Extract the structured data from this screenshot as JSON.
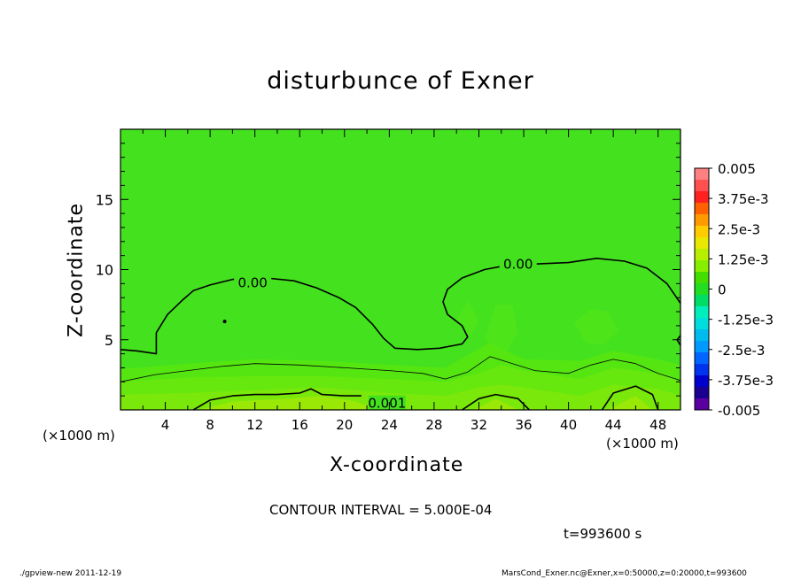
{
  "chart_data": {
    "type": "heatmap",
    "title": "disturbunce of Exner",
    "xlabel": "X-coordinate",
    "ylabel": "Z-coordinate",
    "x_unit_label": "(×1000 m)",
    "xlim": [
      0,
      50
    ],
    "ylim": [
      0,
      20
    ],
    "x_ticks": [
      4,
      8,
      12,
      16,
      20,
      24,
      28,
      32,
      36,
      40,
      44,
      48
    ],
    "y_ticks": [
      5,
      10,
      15
    ],
    "colorbar": {
      "labels": [
        "0.005",
        "3.75e-3",
        "2.5e-3",
        "1.25e-3",
        "0",
        "-1.25e-3",
        "-2.5e-3",
        "-3.75e-3",
        "-0.005"
      ],
      "colors": [
        "#ff8080",
        "#ff5050",
        "#ff2020",
        "#ff6000",
        "#ff9a00",
        "#ffcc00",
        "#e8e800",
        "#b8ee00",
        "#88ee00",
        "#44dd00",
        "#22dd22",
        "#00dd66",
        "#00eebb",
        "#00dddd",
        "#00bbee",
        "#0099ff",
        "#0066ff",
        "#0033ee",
        "#0000cc",
        "#1a0090",
        "#5a00a0"
      ],
      "range": [
        -0.005,
        0.005
      ]
    },
    "contour_labels": [
      {
        "text": "0.00",
        "x": 11.8,
        "z": 9.0
      },
      {
        "text": "0.00",
        "x": 35.5,
        "z": 10.3
      },
      {
        "text": "0.001",
        "x": 23.8,
        "z": 0.4
      }
    ],
    "contours": [
      {
        "level": "0.00",
        "points": [
          [
            0,
            4.3
          ],
          [
            1.5,
            4.2
          ],
          [
            3.2,
            4.0
          ],
          [
            3.2,
            5.5
          ],
          [
            4.2,
            6.8
          ],
          [
            5.5,
            7.8
          ],
          [
            6.5,
            8.5
          ],
          [
            8,
            8.9
          ],
          [
            10,
            9.3
          ],
          [
            13,
            9.4
          ],
          [
            15.5,
            9.2
          ],
          [
            17.5,
            8.7
          ],
          [
            19.5,
            8.0
          ],
          [
            21,
            7.3
          ],
          [
            22.5,
            6.1
          ],
          [
            23.5,
            5.1
          ],
          [
            24.5,
            4.4
          ],
          [
            26.5,
            4.3
          ],
          [
            28.5,
            4.4
          ],
          [
            30.5,
            4.7
          ],
          [
            31,
            5.2
          ],
          [
            30.5,
            6.0
          ],
          [
            29.2,
            6.8
          ],
          [
            28.8,
            7.7
          ],
          [
            29.2,
            8.6
          ],
          [
            30.5,
            9.4
          ],
          [
            32.5,
            10.0
          ],
          [
            34.5,
            10.3
          ],
          [
            37,
            10.4
          ],
          [
            40,
            10.5
          ],
          [
            42.5,
            10.8
          ],
          [
            45,
            10.6
          ],
          [
            47,
            10.1
          ],
          [
            48.8,
            9.0
          ],
          [
            50,
            7.6
          ]
        ]
      },
      {
        "level": "0.00",
        "points": [
          [
            50,
            5.3
          ],
          [
            49.7,
            5.0
          ],
          [
            50,
            4.6
          ]
        ]
      },
      {
        "level": "-",
        "points": [
          [
            0,
            2.0
          ],
          [
            3,
            2.5
          ],
          [
            6,
            2.8
          ],
          [
            9,
            3.1
          ],
          [
            12,
            3.3
          ],
          [
            16,
            3.2
          ],
          [
            20,
            3.0
          ],
          [
            24,
            2.8
          ],
          [
            27,
            2.6
          ],
          [
            29,
            2.2
          ],
          [
            31,
            2.7
          ],
          [
            33,
            3.8
          ],
          [
            35,
            3.3
          ],
          [
            37,
            2.8
          ],
          [
            40,
            2.6
          ],
          [
            42,
            3.2
          ],
          [
            44,
            3.6
          ],
          [
            46,
            3.3
          ],
          [
            48,
            2.6
          ],
          [
            50,
            2.1
          ]
        ]
      },
      {
        "level": "0.001",
        "points": [
          [
            6.5,
            0
          ],
          [
            8,
            0.7
          ],
          [
            10,
            1.0
          ],
          [
            12,
            1.1
          ],
          [
            14,
            1.1
          ],
          [
            16,
            1.2
          ],
          [
            17,
            1.5
          ],
          [
            18,
            1.1
          ],
          [
            20,
            1.0
          ],
          [
            21.5,
            1.0
          ]
        ]
      },
      {
        "level": "0.001",
        "points": [
          [
            30.5,
            0
          ],
          [
            32,
            0.8
          ],
          [
            33.5,
            1.1
          ],
          [
            35.5,
            0.8
          ],
          [
            36.5,
            0
          ]
        ]
      },
      {
        "level": "0.001",
        "points": [
          [
            43,
            0
          ],
          [
            44,
            1.2
          ],
          [
            46,
            1.7
          ],
          [
            47.5,
            1.1
          ],
          [
            48,
            0
          ]
        ]
      }
    ],
    "fill_bands": [
      {
        "color": "#55e612",
        "points": [
          [
            0,
            0
          ],
          [
            0,
            2.9
          ],
          [
            6,
            3.3
          ],
          [
            12,
            3.6
          ],
          [
            18,
            3.5
          ],
          [
            24,
            3.2
          ],
          [
            29,
            3.0
          ],
          [
            33,
            4.8
          ],
          [
            36,
            3.6
          ],
          [
            41,
            3.5
          ],
          [
            44,
            4.2
          ],
          [
            48,
            3.6
          ],
          [
            50,
            3.2
          ],
          [
            50,
            0
          ]
        ]
      },
      {
        "color": "#66e80e",
        "points": [
          [
            0,
            0
          ],
          [
            0,
            2.0
          ],
          [
            6,
            2.3
          ],
          [
            12,
            2.4
          ],
          [
            18,
            2.4
          ],
          [
            24,
            2.2
          ],
          [
            29,
            2.0
          ],
          [
            32,
            2.6
          ],
          [
            34,
            3.2
          ],
          [
            36,
            2.8
          ],
          [
            41,
            2.2
          ],
          [
            44,
            3.0
          ],
          [
            48,
            2.6
          ],
          [
            50,
            2.0
          ],
          [
            50,
            0
          ]
        ]
      },
      {
        "color": "#7ae80a",
        "points": [
          [
            0,
            0
          ],
          [
            0,
            1.1
          ],
          [
            6,
            1.2
          ],
          [
            12,
            1.4
          ],
          [
            18,
            1.6
          ],
          [
            24,
            1.2
          ],
          [
            29,
            1.0
          ],
          [
            32,
            1.6
          ],
          [
            34,
            1.8
          ],
          [
            36,
            1.6
          ],
          [
            41,
            1.0
          ],
          [
            44,
            1.8
          ],
          [
            48,
            1.5
          ],
          [
            50,
            1.0
          ],
          [
            50,
            0
          ]
        ]
      },
      {
        "color": "#9ae806",
        "points": [
          [
            7,
            0
          ],
          [
            10,
            0.6
          ],
          [
            15,
            0.8
          ],
          [
            18,
            1.0
          ],
          [
            21,
            0.6
          ],
          [
            23,
            0
          ],
          [
            31.5,
            0
          ],
          [
            33.5,
            0.8
          ],
          [
            35.5,
            0
          ],
          [
            43.5,
            0
          ],
          [
            46,
            1.0
          ],
          [
            47.5,
            0
          ]
        ]
      }
    ],
    "plume_patches": [
      {
        "color": "#4de41a",
        "points": [
          [
            30,
            6.5
          ],
          [
            31,
            7.8
          ],
          [
            32,
            6.4
          ],
          [
            31.2,
            5.2
          ]
        ]
      },
      {
        "color": "#4de41a",
        "points": [
          [
            32.5,
            5
          ],
          [
            33.5,
            7.5
          ],
          [
            35,
            7.5
          ],
          [
            35.5,
            5.5
          ],
          [
            34.5,
            4.2
          ]
        ]
      },
      {
        "color": "#4de41a",
        "points": [
          [
            40.5,
            6.2
          ],
          [
            42,
            7.2
          ],
          [
            43.5,
            7.0
          ],
          [
            44.5,
            5.6
          ],
          [
            43,
            4.6
          ],
          [
            41.5,
            4.8
          ]
        ]
      }
    ],
    "background_color": "#44e11e"
  },
  "footer": {
    "left": "./gpview-new   2011-12-19",
    "right": "MarsCond_Exner.nc@Exner,x=0:50000,z=0:20000,t=993600"
  },
  "contour_interval": "CONTOUR INTERVAL = 5.000E-04",
  "time_label": "t=993600  s"
}
